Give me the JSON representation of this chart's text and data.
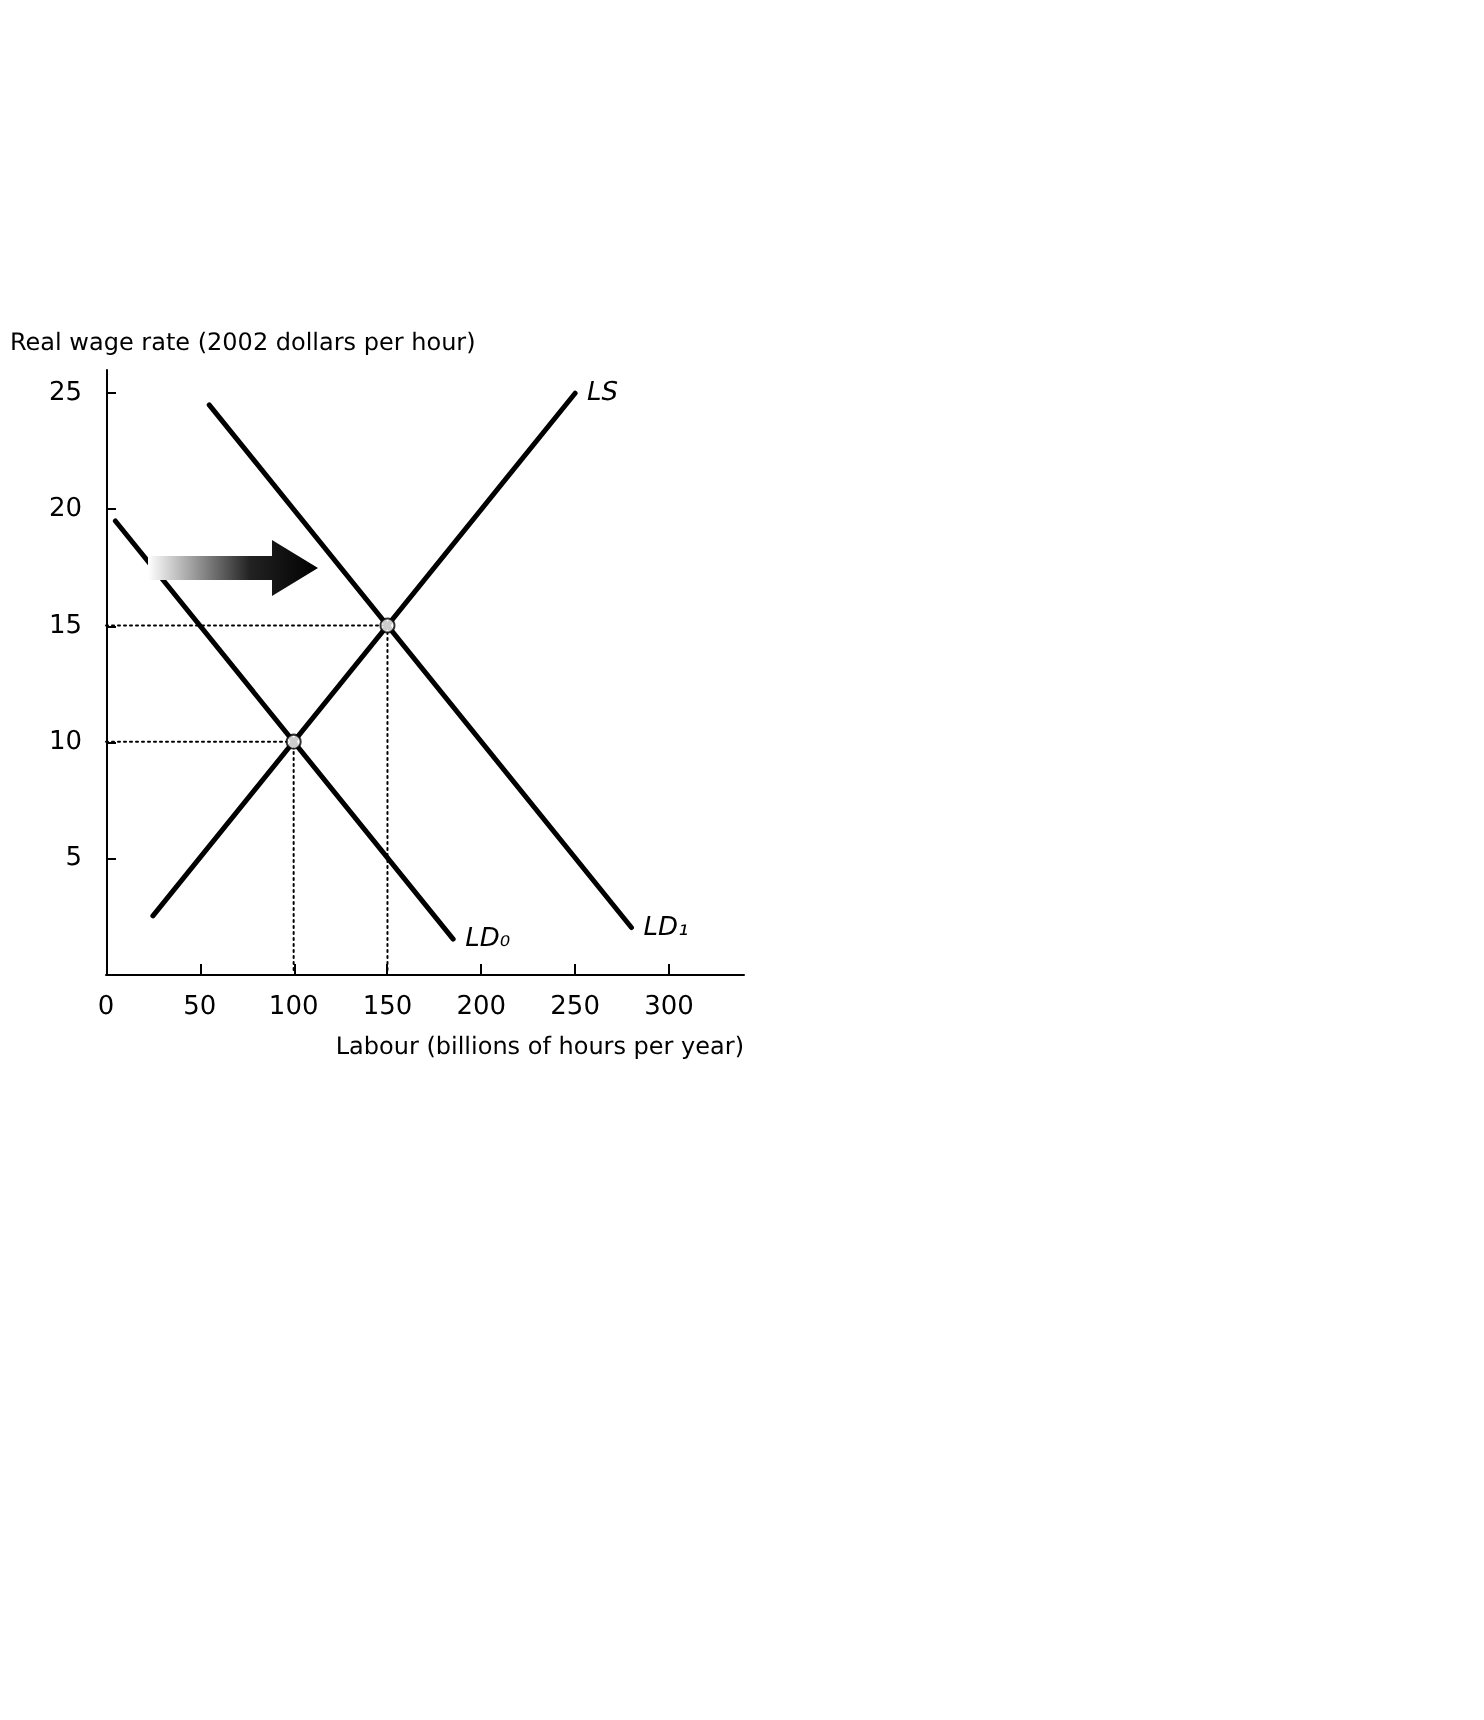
{
  "chart_data": {
    "type": "line",
    "xlabel": "Labour (billions of hours per year)",
    "ylabel": "Real wage rate (2002 dollars per hour)",
    "xlim": [
      0,
      340
    ],
    "xticks": [
      0,
      50,
      100,
      150,
      200,
      250,
      300
    ],
    "ylim": [
      0,
      26
    ],
    "yticks": [
      5,
      10,
      15,
      20,
      25
    ],
    "grid": false,
    "legend": false,
    "line_style": "solid",
    "series": [
      {
        "name": "LS",
        "color": "#000000",
        "x": [
          25,
          250
        ],
        "values": [
          2.5,
          25
        ]
      },
      {
        "name": "LD₀",
        "color": "#000000",
        "x": [
          5,
          185
        ],
        "values": [
          19.5,
          1.5
        ]
      },
      {
        "name": "LD₁",
        "color": "#000000",
        "x": [
          55,
          280
        ],
        "values": [
          24.5,
          2
        ]
      },
      {
        "color": "#000000",
        "line_style": "dotted",
        "x": [
          0,
          100,
          100
        ],
        "values": [
          10,
          10,
          0
        ]
      },
      {
        "color": "#000000",
        "line_style": "dotted",
        "x": [
          0,
          150,
          150
        ],
        "values": [
          15,
          15,
          0
        ]
      },
      {
        "type": "scatter",
        "marker": "circle",
        "color": "#000000",
        "x": [
          100,
          150
        ],
        "values": [
          10,
          15
        ]
      }
    ]
  }
}
